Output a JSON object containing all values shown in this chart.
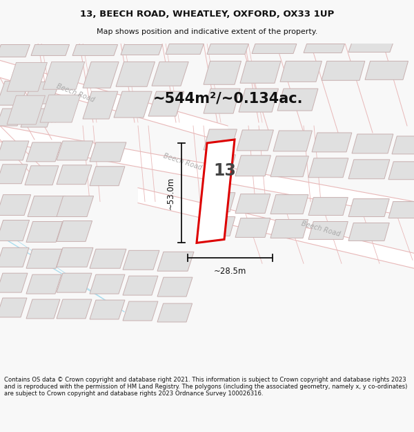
{
  "title_line1": "13, BEECH ROAD, WHEATLEY, OXFORD, OX33 1UP",
  "title_line2": "Map shows position and indicative extent of the property.",
  "footer_text": "Contains OS data © Crown copyright and database right 2021. This information is subject to Crown copyright and database rights 2023 and is reproduced with the permission of HM Land Registry. The polygons (including the associated geometry, namely x, y co-ordinates) are subject to Crown copyright and database rights 2023 Ordnance Survey 100026316.",
  "area_text": "~544m²/~0.134ac.",
  "number_text": "13",
  "dim_width": "~28.5m",
  "dim_height": "~53.0m",
  "bg_color": "#f8f8f8",
  "map_bg": "#ffffff",
  "road_line_color": "#e8b8b8",
  "building_fill": "#e0e0e0",
  "building_edge": "#c8b0b0",
  "road_label_color": "#aaaaaa",
  "highlight_color": "#dd0000",
  "dim_color": "#111111",
  "road_band_color": "#f0e0e0",
  "blue_line_color": "#aaddee"
}
